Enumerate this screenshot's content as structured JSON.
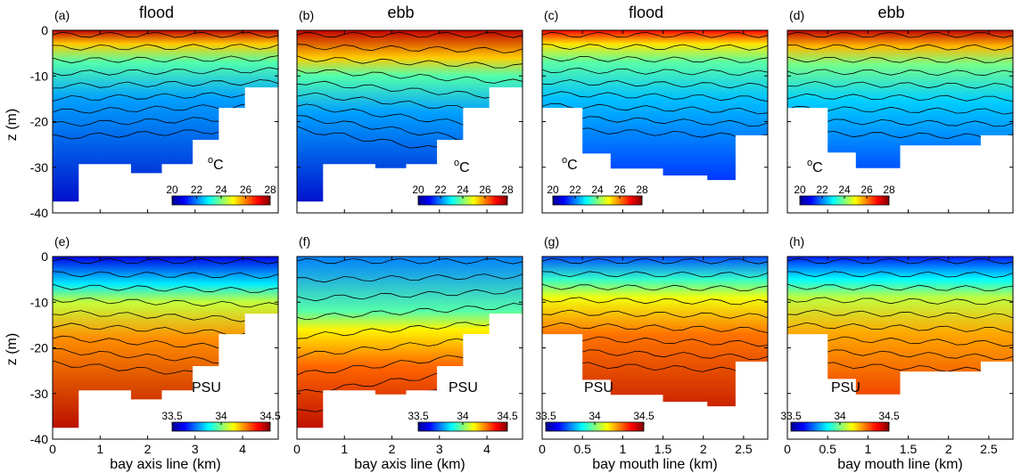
{
  "figure": {
    "ylabel": "z (m)",
    "yticks": [
      "0",
      "-10",
      "-20",
      "-30",
      "-40"
    ]
  },
  "panels": [
    {
      "letter": "(a)",
      "title": "flood",
      "variable": "temperature",
      "unit": "oC",
      "xlabel": "",
      "xticks": [],
      "colorbar_ticks": [
        "20",
        "22",
        "24",
        "26",
        "28"
      ]
    },
    {
      "letter": "(b)",
      "title": "ebb",
      "variable": "temperature",
      "unit": "oC",
      "xlabel": "",
      "xticks": [],
      "colorbar_ticks": [
        "20",
        "22",
        "24",
        "26",
        "28"
      ]
    },
    {
      "letter": "(c)",
      "title": "flood",
      "variable": "temperature",
      "unit": "oC",
      "xlabel": "",
      "xticks": [],
      "colorbar_ticks": [
        "20",
        "22",
        "24",
        "26",
        "28"
      ]
    },
    {
      "letter": "(d)",
      "title": "ebb",
      "variable": "temperature",
      "unit": "oC",
      "xlabel": "",
      "xticks": [],
      "colorbar_ticks": [
        "20",
        "22",
        "24",
        "26",
        "28"
      ]
    },
    {
      "letter": "(e)",
      "title": "",
      "variable": "salinity",
      "unit": "PSU",
      "xlabel": "bay axis line (km)",
      "xticks": [
        "0",
        "1",
        "2",
        "3",
        "4"
      ],
      "colorbar_ticks": [
        "33.5",
        "34",
        "34.5"
      ]
    },
    {
      "letter": "(f)",
      "title": "",
      "variable": "salinity",
      "unit": "PSU",
      "xlabel": "bay axis line (km)",
      "xticks": [
        "0",
        "1",
        "2",
        "3",
        "4"
      ],
      "colorbar_ticks": [
        "33.5",
        "34",
        "34.5"
      ]
    },
    {
      "letter": "(g)",
      "title": "",
      "variable": "salinity",
      "unit": "PSU",
      "xlabel": "bay mouth line (km)",
      "xticks": [
        "0",
        "0.5",
        "1",
        "1.5",
        "2",
        "2.5"
      ],
      "colorbar_ticks": [
        "33.5",
        "34",
        "34.5"
      ]
    },
    {
      "letter": "(h)",
      "title": "",
      "variable": "salinity",
      "unit": "PSU",
      "xlabel": "bay mouth line (km)",
      "xticks": [
        "0",
        "0.5",
        "1",
        "1.5",
        "2",
        "2.5"
      ],
      "colorbar_ticks": [
        "33.5",
        "34",
        "34.5"
      ]
    }
  ],
  "chart_data": [
    {
      "type": "heatmap",
      "panel": "(a)",
      "title": "flood",
      "ylabel": "z (m)",
      "xlim": [
        0,
        4.75
      ],
      "ylim": [
        -40,
        0
      ],
      "colorbar_label": "oC",
      "colorbar_range": [
        20,
        28
      ],
      "contour_lines": true,
      "surface_value": 27.5,
      "bottom_value": 20.5,
      "thermocline_depth": [
        -8,
        -6
      ],
      "bathymetry": [
        [
          0,
          -37.5
        ],
        [
          0.55,
          -37.5
        ],
        [
          0.55,
          -29.3
        ],
        [
          1.65,
          -29.3
        ],
        [
          1.65,
          -31.3
        ],
        [
          2.3,
          -31.3
        ],
        [
          2.3,
          -29.3
        ],
        [
          2.95,
          -29.3
        ],
        [
          2.95,
          -24
        ],
        [
          3.5,
          -24
        ],
        [
          3.5,
          -17
        ],
        [
          4.05,
          -17
        ],
        [
          4.05,
          -12.5
        ],
        [
          4.75,
          -12.5
        ]
      ]
    },
    {
      "type": "heatmap",
      "panel": "(b)",
      "title": "ebb",
      "ylabel": "z (m)",
      "xlim": [
        0,
        4.75
      ],
      "ylim": [
        -40,
        0
      ],
      "colorbar_label": "oC",
      "colorbar_range": [
        20,
        28
      ],
      "contour_lines": true,
      "surface_value": 27.5,
      "bottom_value": 20.5,
      "thermocline_depth": [
        -6,
        -14
      ],
      "bathymetry": [
        [
          0,
          -37.5
        ],
        [
          0.55,
          -37.5
        ],
        [
          0.55,
          -29.3
        ],
        [
          1.65,
          -29.3
        ],
        [
          1.65,
          -30.2
        ],
        [
          2.3,
          -30.2
        ],
        [
          2.3,
          -29.3
        ],
        [
          2.95,
          -29.3
        ],
        [
          2.95,
          -24
        ],
        [
          3.5,
          -24
        ],
        [
          3.5,
          -17
        ],
        [
          4.05,
          -17
        ],
        [
          4.05,
          -12.5
        ],
        [
          4.75,
          -12.5
        ]
      ]
    },
    {
      "type": "heatmap",
      "panel": "(c)",
      "title": "flood",
      "ylabel": "z (m)",
      "xlim": [
        0,
        2.8
      ],
      "ylim": [
        -40,
        0
      ],
      "colorbar_label": "oC",
      "colorbar_range": [
        20,
        28
      ],
      "contour_lines": true,
      "surface_value": 27.0,
      "bottom_value": 21.0,
      "thermocline_depth": [
        -6,
        -8
      ],
      "bathymetry": [
        [
          0,
          -17
        ],
        [
          0.5,
          -17
        ],
        [
          0.5,
          -27
        ],
        [
          0.85,
          -27
        ],
        [
          0.85,
          -30.3
        ],
        [
          1.5,
          -30.3
        ],
        [
          1.5,
          -31.8
        ],
        [
          2.05,
          -31.8
        ],
        [
          2.05,
          -32.8
        ],
        [
          2.4,
          -32.8
        ],
        [
          2.4,
          -23
        ],
        [
          2.8,
          -23
        ]
      ]
    },
    {
      "type": "heatmap",
      "panel": "(d)",
      "title": "ebb",
      "ylabel": "z (m)",
      "xlim": [
        0,
        2.8
      ],
      "ylim": [
        -40,
        0
      ],
      "colorbar_label": "oC",
      "colorbar_range": [
        20,
        28
      ],
      "contour_lines": true,
      "surface_value": 27.5,
      "bottom_value": 21.0,
      "thermocline_depth": [
        -7,
        -8
      ],
      "bathymetry": [
        [
          0,
          -17
        ],
        [
          0.5,
          -17
        ],
        [
          0.5,
          -26.8
        ],
        [
          0.85,
          -26.8
        ],
        [
          0.85,
          -30.2
        ],
        [
          1.4,
          -30.2
        ],
        [
          1.4,
          -25.2
        ],
        [
          2.4,
          -25.2
        ],
        [
          2.4,
          -23
        ],
        [
          2.8,
          -23
        ]
      ]
    },
    {
      "type": "heatmap",
      "panel": "(e)",
      "xlabel": "bay axis line (km)",
      "ylabel": "z (m)",
      "xlim": [
        0,
        4.75
      ],
      "ylim": [
        -40,
        0
      ],
      "colorbar_label": "PSU",
      "colorbar_range": [
        33.5,
        34.5
      ],
      "contour_lines": true,
      "surface_value": 33.6,
      "bottom_value": 34.45,
      "thermocline_depth": [
        -8,
        -12
      ],
      "bathymetry": [
        [
          0,
          -37.5
        ],
        [
          0.55,
          -37.5
        ],
        [
          0.55,
          -29.3
        ],
        [
          1.65,
          -29.3
        ],
        [
          1.65,
          -31.3
        ],
        [
          2.3,
          -31.3
        ],
        [
          2.3,
          -29.3
        ],
        [
          2.95,
          -29.3
        ],
        [
          2.95,
          -24
        ],
        [
          3.5,
          -24
        ],
        [
          3.5,
          -17
        ],
        [
          4.05,
          -17
        ],
        [
          4.05,
          -12.5
        ],
        [
          4.75,
          -12.5
        ]
      ]
    },
    {
      "type": "heatmap",
      "panel": "(f)",
      "xlabel": "bay axis line (km)",
      "ylabel": "z (m)",
      "xlim": [
        0,
        4.75
      ],
      "ylim": [
        -40,
        0
      ],
      "colorbar_label": "PSU",
      "colorbar_range": [
        33.5,
        34.5
      ],
      "contour_lines": true,
      "surface_value": 33.75,
      "bottom_value": 34.45,
      "thermocline_depth": [
        -20,
        -12
      ],
      "bathymetry": [
        [
          0,
          -37.5
        ],
        [
          0.55,
          -37.5
        ],
        [
          0.55,
          -29.3
        ],
        [
          1.65,
          -29.3
        ],
        [
          1.65,
          -30.2
        ],
        [
          2.3,
          -30.2
        ],
        [
          2.3,
          -29.3
        ],
        [
          2.95,
          -29.3
        ],
        [
          2.95,
          -24
        ],
        [
          3.5,
          -24
        ],
        [
          3.5,
          -17
        ],
        [
          4.05,
          -17
        ],
        [
          4.05,
          -12.5
        ],
        [
          4.75,
          -12.5
        ]
      ]
    },
    {
      "type": "heatmap",
      "panel": "(g)",
      "xlabel": "bay mouth line (km)",
      "ylabel": "z (m)",
      "xlim": [
        0,
        2.8
      ],
      "ylim": [
        -40,
        0
      ],
      "colorbar_label": "PSU",
      "colorbar_range": [
        33.5,
        34.5
      ],
      "contour_lines": true,
      "surface_value": 33.7,
      "bottom_value": 34.45,
      "thermocline_depth": [
        -8,
        -10
      ],
      "bathymetry": [
        [
          0,
          -17
        ],
        [
          0.5,
          -17
        ],
        [
          0.5,
          -27
        ],
        [
          0.85,
          -27
        ],
        [
          0.85,
          -30.3
        ],
        [
          1.5,
          -30.3
        ],
        [
          1.5,
          -31.8
        ],
        [
          2.05,
          -31.8
        ],
        [
          2.05,
          -32.8
        ],
        [
          2.4,
          -32.8
        ],
        [
          2.4,
          -23
        ],
        [
          2.8,
          -23
        ]
      ]
    },
    {
      "type": "heatmap",
      "panel": "(h)",
      "xlabel": "bay mouth line (km)",
      "ylabel": "z (m)",
      "xlim": [
        0,
        2.8
      ],
      "ylim": [
        -40,
        0
      ],
      "colorbar_label": "PSU",
      "colorbar_range": [
        33.5,
        34.5
      ],
      "contour_lines": true,
      "surface_value": 33.65,
      "bottom_value": 34.4,
      "thermocline_depth": [
        -8,
        -10
      ],
      "bathymetry": [
        [
          0,
          -17
        ],
        [
          0.5,
          -17
        ],
        [
          0.5,
          -26.8
        ],
        [
          0.85,
          -26.8
        ],
        [
          0.85,
          -30.2
        ],
        [
          1.4,
          -30.2
        ],
        [
          1.4,
          -25.2
        ],
        [
          2.4,
          -25.2
        ],
        [
          2.4,
          -23
        ],
        [
          2.8,
          -23
        ]
      ]
    }
  ]
}
